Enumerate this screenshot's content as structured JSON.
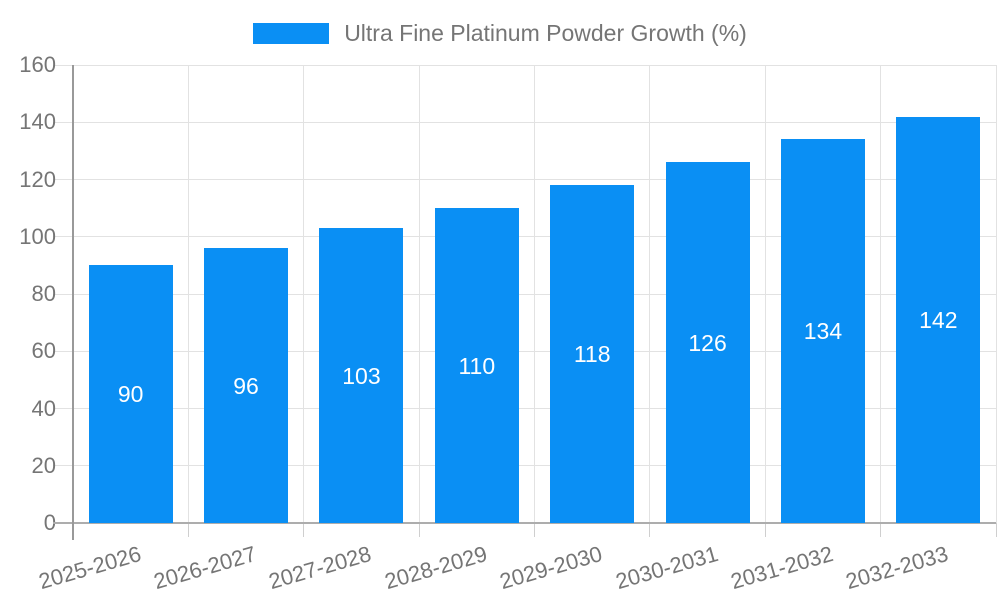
{
  "chart_data": {
    "type": "bar",
    "title": "Ultra Fine Platinum Powder Growth (%)",
    "categories": [
      "2025-2026",
      "2026-2027",
      "2027-2028",
      "2028-2029",
      "2029-2030",
      "2030-2031",
      "2031-2032",
      "2032-2033"
    ],
    "series": [
      {
        "name": "Ultra Fine Platinum Powder Growth (%)",
        "values": [
          90,
          96,
          103,
          110,
          118,
          126,
          134,
          142
        ]
      }
    ],
    "xlabel": "",
    "ylabel": "",
    "ylim": [
      0,
      160
    ],
    "yticks": [
      0,
      20,
      40,
      60,
      80,
      100,
      120,
      140,
      160
    ],
    "grid": true,
    "legend_position": "top-center",
    "bar_color": "#0A8FF4",
    "value_label_color": "#FFFFFF",
    "axis_text_color": "#757575",
    "gridline_color": "#E2E2E2",
    "axis_line_color": "#ADADAD",
    "y_axis_line_color": "#999999"
  }
}
